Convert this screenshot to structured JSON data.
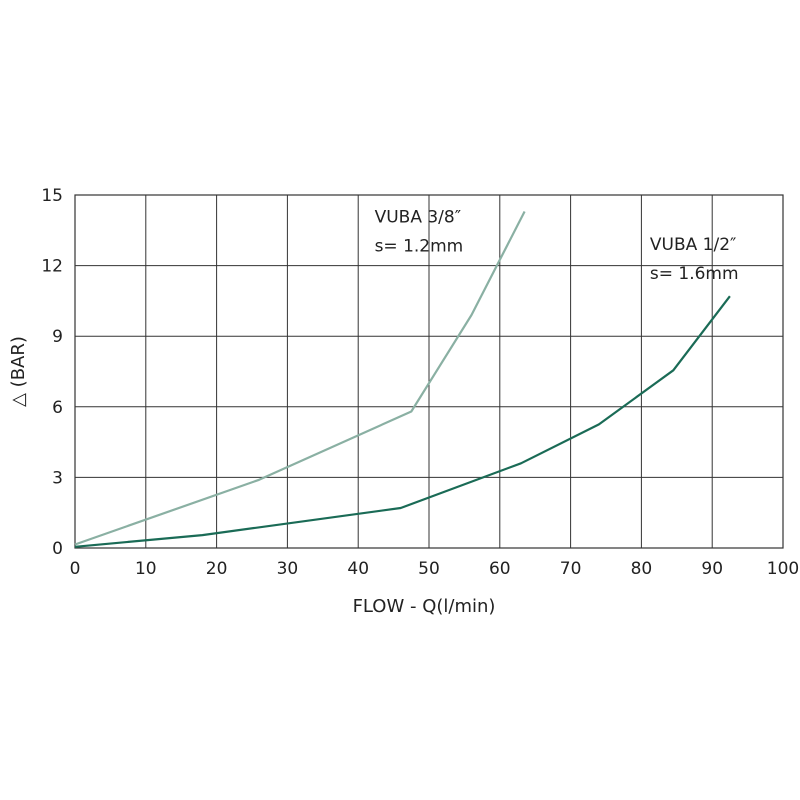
{
  "chart_data": {
    "type": "line",
    "xlabel": "FLOW - Q(l/min)",
    "ylabel": "△ (BAR)",
    "xlim": [
      0,
      100
    ],
    "ylim": [
      0,
      15
    ],
    "x_ticks": [
      "0",
      "10",
      "20",
      "30",
      "40",
      "50",
      "60",
      "70",
      "80",
      "90",
      "100"
    ],
    "y_ticks": [
      "0",
      "3",
      "6",
      "9",
      "12",
      "15"
    ],
    "grid": true,
    "series": [
      {
        "name": "VUBA 3/8″",
        "color": "#8ab0a3",
        "x": [
          0,
          26,
          47.5,
          56,
          63.5
        ],
        "y": [
          0.15,
          2.9,
          5.8,
          9.9,
          14.3
        ]
      },
      {
        "name": "VUBA 1/2″",
        "color": "#1a6b56",
        "x": [
          0,
          18,
          46,
          63,
          74,
          84.5,
          92.5
        ],
        "y": [
          0.05,
          0.55,
          1.7,
          3.6,
          5.25,
          7.55,
          10.7
        ]
      }
    ],
    "annotations": [
      {
        "line1": "VUBA 3/8″",
        "line2": "s= 1.2mm",
        "series": 0
      },
      {
        "line1": "VUBA 1/2″",
        "line2": "s= 1.6mm",
        "series": 1
      }
    ]
  }
}
